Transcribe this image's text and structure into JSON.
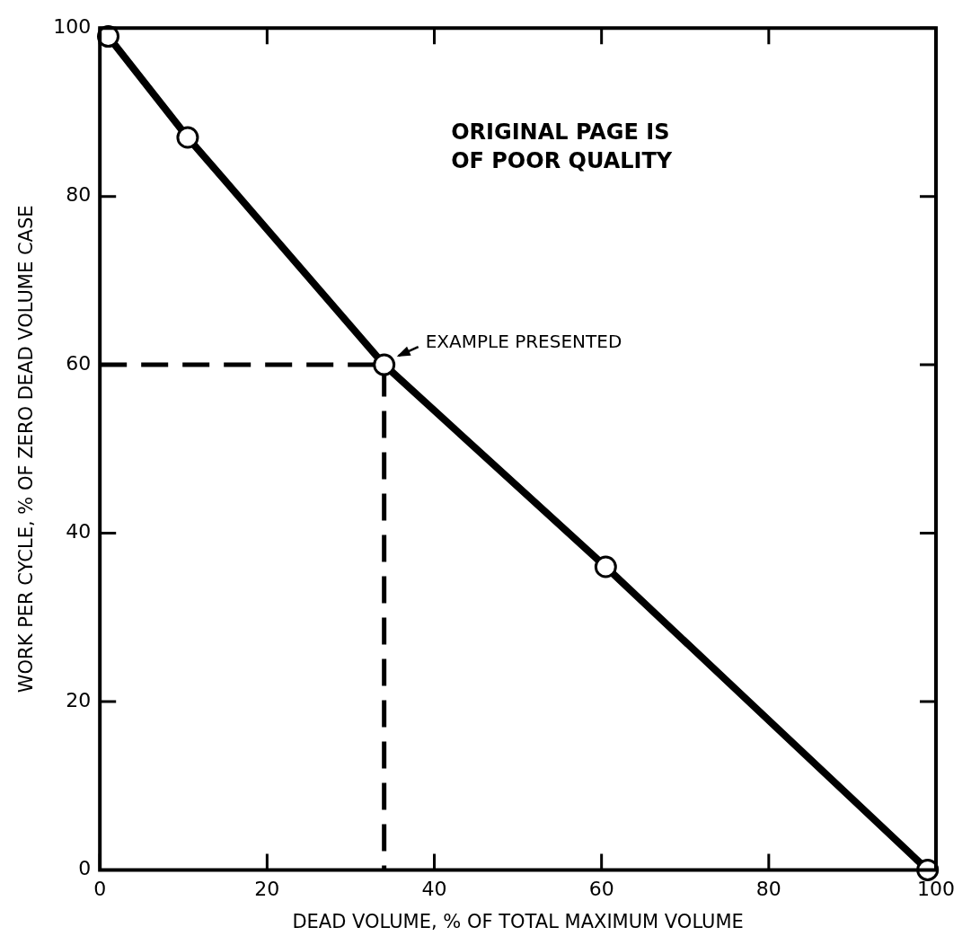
{
  "chart_data": {
    "type": "line",
    "xlabel": "DEAD VOLUME, % OF TOTAL MAXIMUM VOLUME",
    "ylabel": "WORK PER CYCLE, % OF ZERO DEAD VOLUME CASE",
    "xlim": [
      0,
      100
    ],
    "xticks": [
      0,
      20,
      40,
      60,
      80,
      100
    ],
    "ylim": [
      0,
      100
    ],
    "yticks": [
      0,
      20,
      40,
      60,
      80,
      100
    ],
    "grid": false,
    "marker": "circle",
    "line_style": "solid",
    "series": [
      {
        "color": "#000000",
        "x": [
          1,
          10.5,
          34,
          60.5,
          99
        ],
        "values": [
          99,
          87,
          60,
          36,
          0
        ]
      },
      {
        "type": "line",
        "color": "#000000",
        "marker": "none",
        "line_style": "dashed",
        "x": [
          0,
          34,
          34
        ],
        "values": [
          60,
          60,
          0
        ]
      }
    ],
    "annotations": [
      {
        "text": "EXAMPLE PRESENTED",
        "x": 34,
        "y": 60
      },
      "ORIGINAL PAGE IS\nOF POOR QUALITY"
    ]
  }
}
